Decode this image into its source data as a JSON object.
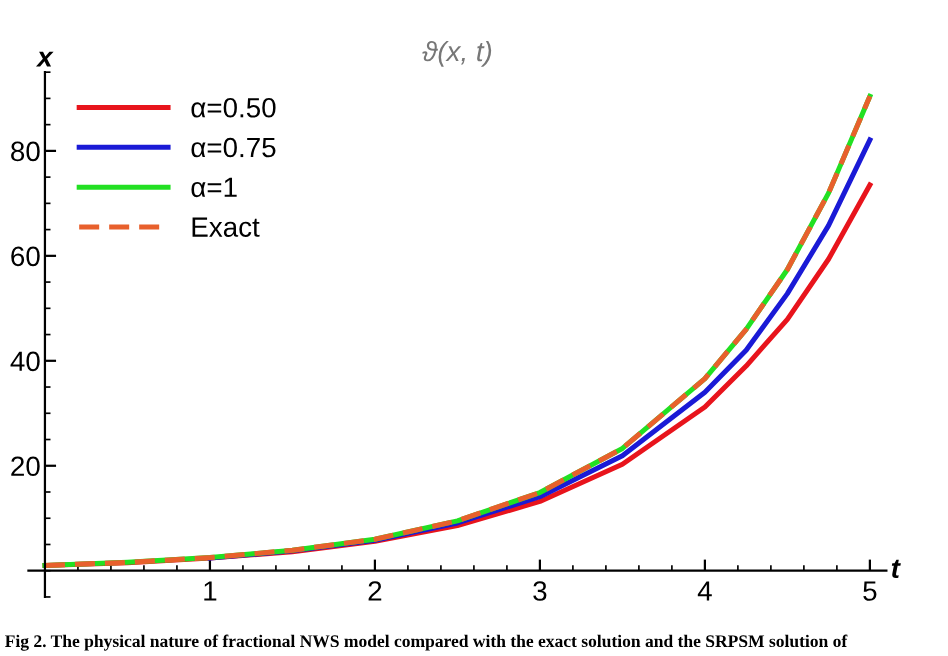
{
  "chart_data": {
    "type": "line",
    "title": "ϑ(x, t)",
    "xlabel": "t",
    "ylabel": "x",
    "x": [
      0,
      0.5,
      1,
      1.5,
      2,
      2.5,
      3,
      3.5,
      4,
      4.25,
      4.5,
      4.75,
      5
    ],
    "series": [
      {
        "name": "α=0.50",
        "color": "#e8141c",
        "values": [
          1,
          1.5,
          2.4,
          3.6,
          5.6,
          8.6,
          13.2,
          20.3,
          31.2,
          39,
          47.9,
          59.4,
          73.5
        ]
      },
      {
        "name": "α=0.75",
        "color": "#1a1ad6",
        "values": [
          null,
          null,
          2.4,
          3.8,
          5.8,
          9.1,
          14.1,
          21.9,
          34,
          42,
          52.8,
          65.8,
          82.1
        ]
      },
      {
        "name": "α=1",
        "color": "#22e022",
        "values": [
          1,
          1.6,
          2.5,
          3.9,
          6,
          9.5,
          14.9,
          23.3,
          36.6,
          46,
          57.4,
          72,
          90.4
        ]
      },
      {
        "name": "Exact",
        "color": "#e8602c",
        "line_style": "dashed",
        "values": [
          1,
          1.6,
          2.5,
          3.9,
          6,
          9.5,
          14.9,
          23.3,
          36.6,
          46,
          57.4,
          72,
          90.4
        ]
      }
    ],
    "xlim": [
      -0.1,
      5.1
    ],
    "ylim": [
      -5,
      95
    ],
    "xticks": [
      1,
      2,
      3,
      4,
      5
    ],
    "yticks": [
      20,
      40,
      60,
      80
    ],
    "grid": false,
    "legend": "top left",
    "marker": "none",
    "annotations": [
      "Fig 2. The physical nature of fractional NWS model compared with the exact solution and the SRPSM solution of"
    ]
  }
}
